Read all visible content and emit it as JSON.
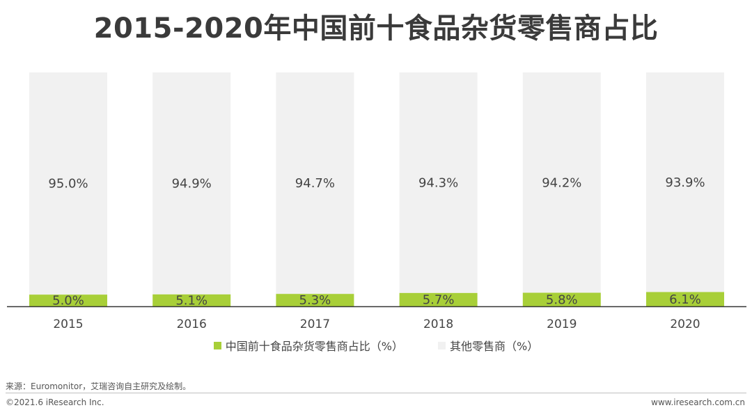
{
  "chart_data": {
    "type": "bar",
    "stacked": true,
    "title": "2015-2020年中国前十食品杂货零售商占比",
    "categories": [
      "2015",
      "2016",
      "2017",
      "2018",
      "2019",
      "2020"
    ],
    "series": [
      {
        "name": "中国前十食品杂货零售商占比（%）",
        "values": [
          5.0,
          5.1,
          5.3,
          5.7,
          5.8,
          6.1
        ],
        "labels": [
          "5.0%",
          "5.1%",
          "5.3%",
          "5.7%",
          "5.8%",
          "6.1%"
        ],
        "color": "#a8cf38"
      },
      {
        "name": "其他零售商（%）",
        "values": [
          95.0,
          94.9,
          94.7,
          94.3,
          94.2,
          93.9
        ],
        "labels": [
          "95.0%",
          "94.9%",
          "94.7%",
          "94.3%",
          "94.2%",
          "93.9%"
        ],
        "color": "#f1f1f1"
      }
    ],
    "ylim": [
      0,
      100
    ],
    "xlabel": "",
    "ylabel": "",
    "grid": false,
    "legend": "bottom-center"
  },
  "footer": {
    "source": "来源：Euromonitor，艾瑞咨询自主研究及绘制。",
    "copyright": "©2021.6 iResearch Inc.",
    "website": "www.iresearch.com.cn"
  }
}
